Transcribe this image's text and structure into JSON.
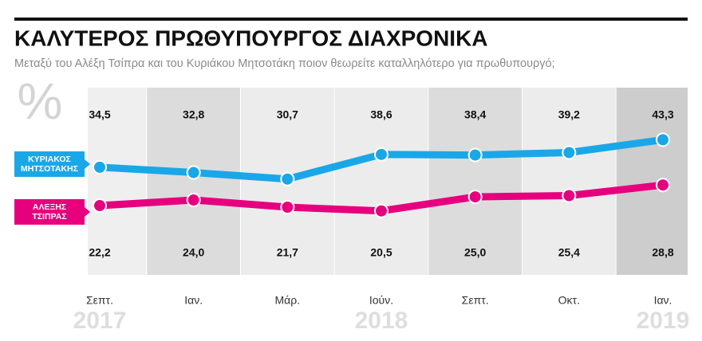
{
  "chart_data": {
    "type": "line",
    "title": "ΚΑΛΥΤΕΡΟΣ ΠΡΩΘΥΠΟΥΡΓΟΣ ΔΙΑΧΡΟΝΙΚΑ",
    "subtitle": "Μεταξύ του Αλέξη Τσίπρα και του Κυριάκου Μητσοτάκη ποιον θεωρείτε καταλληλότερο για πρωθυπουργό;",
    "unit_symbol": "%",
    "categories": [
      "Σεπτ.",
      "Ιαν.",
      "Μάρ.",
      "Ιούν.",
      "Σεπτ.",
      "Οκτ.",
      "Ιαν."
    ],
    "years": [
      "2017",
      null,
      null,
      "2018",
      null,
      null,
      "2019"
    ],
    "ylim": [
      0,
      60
    ],
    "series": [
      {
        "name": "ΚΥΡΙΑΚΟΣ ΜΗΤΣΟΤΑΚΗΣ",
        "color": "#1aa7e8",
        "values": [
          34.5,
          32.8,
          30.7,
          38.6,
          38.4,
          39.2,
          43.3
        ],
        "value_labels": [
          "34,5",
          "32,8",
          "30,7",
          "38,6",
          "38,4",
          "39,2",
          "43,3"
        ]
      },
      {
        "name": "ΑΛΕΞΗΣ ΤΣΙΠΡΑΣ",
        "color": "#e6007e",
        "values": [
          22.2,
          24.0,
          21.7,
          20.5,
          25.0,
          25.4,
          28.8
        ],
        "value_labels": [
          "22,2",
          "24,0",
          "21,7",
          "20,5",
          "25,0",
          "25,4",
          "28,8"
        ]
      }
    ]
  }
}
